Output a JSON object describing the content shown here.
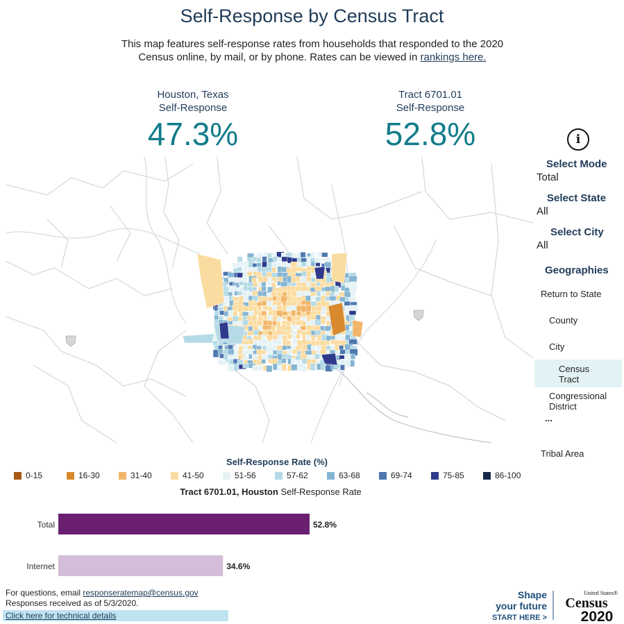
{
  "header": {
    "title": "Self-Response by Census Tract",
    "subtitle_line1": "This map features self-response rates from households that responded to the 2020",
    "subtitle_line2": "Census online, by mail, or by phone. Rates can be viewed in",
    "rankings_link": "rankings here."
  },
  "kpis": {
    "left": {
      "place": "Houston, Texas",
      "label": "Self-Response",
      "value": "47.3%"
    },
    "right": {
      "place": "Tract 6701.01",
      "label": "Self-Response",
      "value": "52.8%"
    }
  },
  "info_icon": "info-circle-icon",
  "filters": {
    "mode": {
      "label": "Select Mode",
      "value": "Total"
    },
    "state": {
      "label": "Select State",
      "value": "All"
    },
    "city": {
      "label": "Select City",
      "value": "All"
    }
  },
  "geographies": {
    "label": "Geographies",
    "items": [
      "Return to State",
      "County",
      "City",
      "Census",
      "Tract",
      "Congressional",
      "District",
      "...",
      "Tribal Area"
    ],
    "selected": "Census Tract"
  },
  "legend": {
    "title": "Self-Response Rate (%)",
    "items": [
      {
        "label": "0-15",
        "color": "#a75a13"
      },
      {
        "label": "16-30",
        "color": "#d98a2e"
      },
      {
        "label": "31-40",
        "color": "#f2b66a"
      },
      {
        "label": "41-50",
        "color": "#fbdca0"
      },
      {
        "label": "51-56",
        "color": "#e6f3f6"
      },
      {
        "label": "57-62",
        "color": "#b5dbe6"
      },
      {
        "label": "63-68",
        "color": "#86b5d3"
      },
      {
        "label": "69-74",
        "color": "#4f77b0"
      },
      {
        "label": "75-85",
        "color": "#2f3a8c"
      },
      {
        "label": "86-100",
        "color": "#17294a"
      }
    ]
  },
  "bar_chart": {
    "title_bold": "Tract 6701.01, Houston",
    "title_rest": " Self-Response Rate",
    "rows": [
      {
        "label": "Total",
        "value": 52.8,
        "value_text": "52.8%",
        "color": "#6a1f71"
      },
      {
        "label": "Internet",
        "value": 34.6,
        "value_text": "34.6%",
        "color": "#d3bdd8"
      }
    ]
  },
  "footer": {
    "questions_prefix": "For questions, email ",
    "email": "responseratemap@census.gov",
    "responses_as_of": "Responses received as of 5/3/2020.",
    "tech_link": "Click here for technical details"
  },
  "logo": {
    "line1": "Shape",
    "line2": "your future",
    "line3": "START HERE >",
    "brand_top": "United States®",
    "brand_word": "Census",
    "brand_year": "2020"
  },
  "highway_shields": [
    "interstate-shield-icon",
    "interstate-shield-icon"
  ]
}
